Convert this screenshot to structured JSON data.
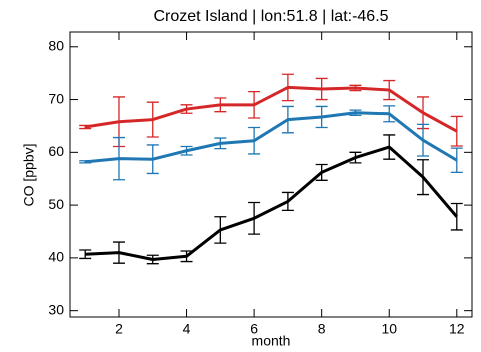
{
  "chart_data": {
    "type": "line",
    "title": "Crozet Island | lon:51.8 | lat:-46.5",
    "x_label": "month",
    "y_label": "CO [ppbv]",
    "x": [
      1,
      2,
      3,
      4,
      5,
      6,
      7,
      8,
      9,
      10,
      11,
      12
    ],
    "xlim": [
      0.55,
      12.45
    ],
    "xticks": [
      2,
      4,
      6,
      8,
      10,
      12
    ],
    "ylim": [
      28.8,
      82.8
    ],
    "yticks": [
      30,
      40,
      50,
      60,
      70,
      80
    ],
    "grid": false,
    "series": [
      {
        "color": "#d62728",
        "values": [
          64.8,
          65.8,
          66.2,
          68.2,
          69,
          69,
          72.3,
          72,
          72.2,
          71.8,
          67.5,
          64
        ],
        "errors": [
          0.3,
          4.7,
          3.3,
          0.8,
          1.3,
          2.5,
          2.5,
          2,
          0.5,
          1.8,
          3,
          2.8
        ]
      },
      {
        "color": "#1f77b4",
        "values": [
          58.2,
          58.8,
          58.7,
          60.3,
          61.7,
          62.2,
          66.2,
          66.7,
          67.5,
          67.3,
          62.3,
          58.5
        ],
        "errors": [
          0.2,
          4,
          2.7,
          0.8,
          1,
          2.5,
          2.5,
          2,
          0.5,
          1.5,
          3,
          2.3
        ]
      },
      {
        "color": "#000000",
        "values": [
          40.7,
          41,
          39.7,
          40.3,
          45.3,
          47.5,
          50.7,
          56.2,
          59,
          61,
          55.3,
          47.8
        ],
        "errors": [
          0.8,
          2,
          0.8,
          1,
          2.5,
          3,
          1.7,
          1.5,
          1,
          2.3,
          3.3,
          2.5
        ]
      }
    ]
  }
}
